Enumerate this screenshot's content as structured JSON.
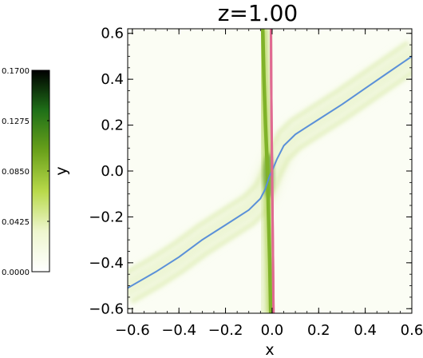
{
  "chart_data": {
    "type": "heatmap",
    "title": "z=1.00",
    "xlabel": "x",
    "ylabel": "y",
    "xlim": [
      -0.62,
      0.6
    ],
    "ylim": [
      -0.62,
      0.62
    ],
    "x_ticks": [
      -0.6,
      -0.4,
      -0.2,
      0.0,
      0.2,
      0.4,
      0.6
    ],
    "x_tick_labels": [
      "−0.6",
      "−0.4",
      "−0.2",
      "0.0",
      "0.2",
      "0.4",
      "0.6"
    ],
    "y_ticks": [
      -0.6,
      -0.4,
      -0.2,
      0.0,
      0.2,
      0.4,
      0.6
    ],
    "y_tick_labels": [
      "−0.6",
      "−0.4",
      "−0.2",
      "0.0",
      "0.2",
      "0.4",
      "0.6"
    ],
    "colorbar": {
      "min": 0.0,
      "max": 0.17,
      "ticks": [
        0.0,
        0.0425,
        0.085,
        0.1275,
        0.17
      ],
      "tick_labels": [
        "0.0000",
        "0.0425",
        "0.0850",
        "0.1275",
        "0.1700"
      ],
      "colors": [
        "#ffffff",
        "#eef6cf",
        "#b8d94a",
        "#6aa11b",
        "#1f7018",
        "#000000"
      ]
    },
    "series": [
      {
        "color": "#e06a91",
        "points": [
          [
            -0.005,
            0.62
          ],
          [
            -0.004,
            0.4
          ],
          [
            -0.002,
            0.2
          ],
          [
            0.0,
            0.0
          ],
          [
            0.002,
            -0.2
          ],
          [
            0.004,
            -0.4
          ],
          [
            0.006,
            -0.62
          ]
        ]
      },
      {
        "color": "#7fb229",
        "points": [
          [
            -0.04,
            0.62
          ],
          [
            -0.035,
            0.4
          ],
          [
            -0.028,
            0.2
          ],
          [
            -0.02,
            0.0
          ],
          [
            -0.015,
            -0.2
          ],
          [
            -0.01,
            -0.4
          ],
          [
            -0.006,
            -0.62
          ]
        ]
      },
      {
        "color": "#5a90d8",
        "points": [
          [
            -0.62,
            -0.51
          ],
          [
            -0.5,
            -0.44
          ],
          [
            -0.4,
            -0.375
          ],
          [
            -0.3,
            -0.3
          ],
          [
            -0.2,
            -0.235
          ],
          [
            -0.1,
            -0.17
          ],
          [
            -0.05,
            -0.12
          ],
          [
            -0.03,
            -0.08
          ],
          [
            -0.01,
            -0.02
          ],
          [
            0.0,
            0.0
          ],
          [
            0.02,
            0.05
          ],
          [
            0.05,
            0.11
          ],
          [
            0.1,
            0.16
          ],
          [
            0.2,
            0.225
          ],
          [
            0.3,
            0.29
          ],
          [
            0.4,
            0.36
          ],
          [
            0.5,
            0.43
          ],
          [
            0.6,
            0.5
          ]
        ]
      }
    ],
    "grid": false
  }
}
